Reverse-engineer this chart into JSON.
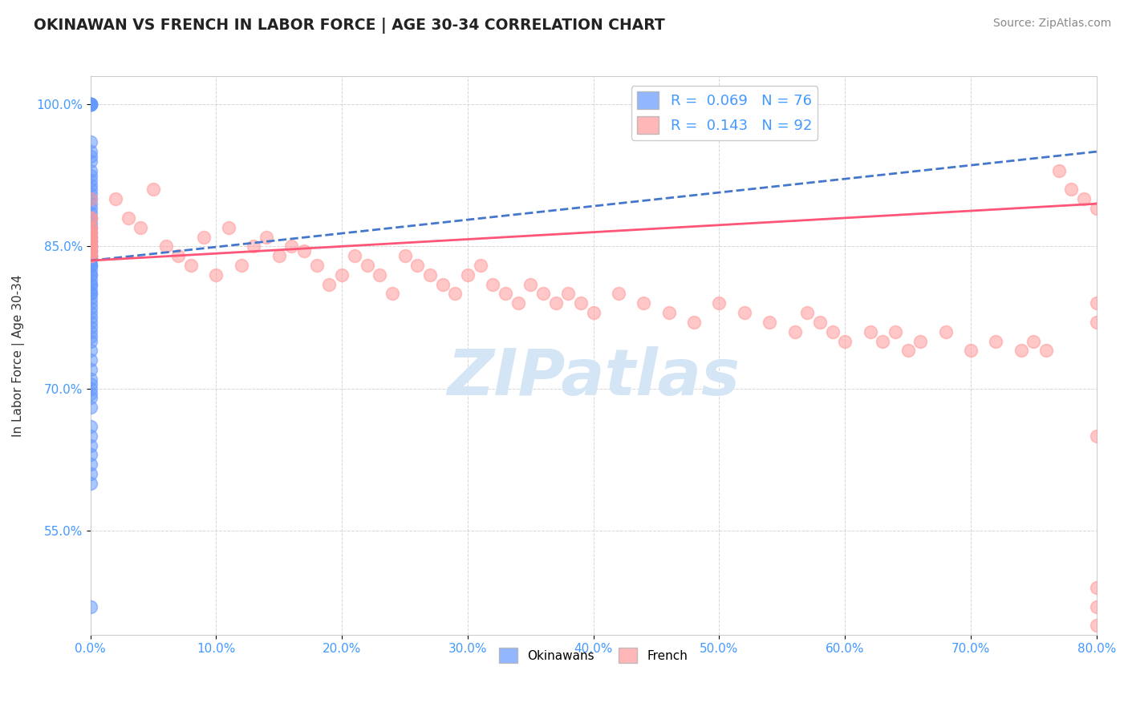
{
  "title": "OKINAWAN VS FRENCH IN LABOR FORCE | AGE 30-34 CORRELATION CHART",
  "source_text": "Source: ZipAtlas.com",
  "ylabel": "In Labor Force | Age 30-34",
  "xlim": [
    0.0,
    80.0
  ],
  "ylim": [
    44.0,
    103.0
  ],
  "xticks": [
    0.0,
    10.0,
    20.0,
    30.0,
    40.0,
    50.0,
    60.0,
    70.0,
    80.0
  ],
  "yticks": [
    55.0,
    70.0,
    85.0,
    100.0
  ],
  "okinawan_R": 0.069,
  "okinawan_N": 76,
  "french_R": 0.143,
  "french_N": 92,
  "okinawan_color": "#6699ff",
  "french_color": "#ff9999",
  "okinawan_line_color": "#4477cc",
  "french_line_color": "#ff5577",
  "background_color": "#ffffff",
  "grid_color": "#cccccc",
  "title_color": "#222222",
  "axis_label_color": "#333333",
  "tick_label_color": "#4499ff",
  "watermark_color": "#d4e5f5",
  "okinawan_legend_label": "Okinawans",
  "french_legend_label": "French",
  "okinawan_trendline": [
    [
      0.0,
      80.0
    ],
    [
      83.5,
      95.0
    ]
  ],
  "french_trendline": [
    [
      0.0,
      80.0
    ],
    [
      83.5,
      89.5
    ]
  ],
  "okinawan_x": [
    0.0,
    0.0,
    0.0,
    0.0,
    0.0,
    0.0,
    0.0,
    0.0,
    0.0,
    0.0,
    0.0,
    0.0,
    0.0,
    0.0,
    0.0,
    0.0,
    0.0,
    0.0,
    0.0,
    0.0,
    0.0,
    0.0,
    0.0,
    0.0,
    0.0,
    0.0,
    0.0,
    0.0,
    0.0,
    0.0,
    0.0,
    0.0,
    0.0,
    0.0,
    0.0,
    0.0,
    0.0,
    0.0,
    0.0,
    0.0,
    0.0,
    0.0,
    0.0,
    0.0,
    0.0,
    0.0,
    0.0,
    0.0,
    0.0,
    0.0,
    0.0,
    0.0,
    0.0,
    0.0,
    0.0,
    0.0,
    0.0,
    0.0,
    0.0,
    0.0,
    0.0,
    0.0,
    0.0,
    0.0,
    0.0,
    0.0,
    0.0,
    0.0,
    0.0,
    0.0,
    0.0,
    0.0,
    0.0,
    0.0,
    0.0,
    0.0
  ],
  "okinawan_y": [
    100.0,
    100.0,
    100.0,
    100.0,
    100.0,
    100.0,
    100.0,
    100.0,
    96.0,
    95.0,
    94.5,
    94.0,
    93.0,
    92.5,
    92.0,
    91.5,
    91.0,
    90.5,
    90.0,
    89.5,
    89.0,
    88.5,
    88.0,
    87.5,
    87.0,
    86.5,
    86.0,
    85.5,
    85.5,
    85.0,
    85.0,
    85.0,
    84.5,
    84.5,
    84.0,
    84.0,
    83.5,
    83.0,
    83.0,
    83.0,
    82.5,
    82.0,
    82.0,
    81.5,
    81.0,
    81.0,
    80.5,
    80.0,
    80.0,
    79.5,
    79.0,
    78.5,
    78.0,
    77.5,
    77.0,
    76.5,
    76.0,
    75.5,
    75.0,
    74.0,
    73.0,
    72.0,
    71.0,
    70.5,
    70.0,
    69.5,
    69.0,
    68.0,
    66.0,
    65.0,
    64.0,
    63.0,
    62.0,
    61.0,
    60.0,
    47.0
  ],
  "french_x": [
    0.0,
    0.0,
    0.0,
    0.0,
    0.0,
    0.0,
    0.0,
    0.0,
    0.0,
    0.0,
    0.0,
    0.0,
    0.0,
    0.0,
    0.0,
    0.0,
    0.0,
    0.0,
    0.0,
    0.0,
    2.0,
    3.0,
    4.0,
    5.0,
    6.0,
    7.0,
    8.0,
    9.0,
    10.0,
    11.0,
    12.0,
    13.0,
    14.0,
    15.0,
    16.0,
    17.0,
    18.0,
    19.0,
    20.0,
    21.0,
    22.0,
    23.0,
    24.0,
    25.0,
    26.0,
    27.0,
    28.0,
    29.0,
    30.0,
    31.0,
    32.0,
    33.0,
    34.0,
    35.0,
    36.0,
    37.0,
    38.0,
    39.0,
    40.0,
    42.0,
    44.0,
    46.0,
    48.0,
    50.0,
    52.0,
    54.0,
    56.0,
    57.0,
    58.0,
    59.0,
    60.0,
    62.0,
    63.0,
    64.0,
    65.0,
    66.0,
    68.0,
    70.0,
    72.0,
    74.0,
    75.0,
    76.0,
    77.0,
    78.0,
    79.0,
    80.0,
    80.0,
    80.0,
    80.0,
    80.0,
    80.0,
    80.0
  ],
  "french_y": [
    90.0,
    88.0,
    88.0,
    87.0,
    87.0,
    86.5,
    86.5,
    86.0,
    86.0,
    85.5,
    85.5,
    85.0,
    85.0,
    85.0,
    85.0,
    84.5,
    84.5,
    84.0,
    84.0,
    84.0,
    90.0,
    88.0,
    87.0,
    91.0,
    85.0,
    84.0,
    83.0,
    86.0,
    82.0,
    87.0,
    83.0,
    85.0,
    86.0,
    84.0,
    85.0,
    84.5,
    83.0,
    81.0,
    82.0,
    84.0,
    83.0,
    82.0,
    80.0,
    84.0,
    83.0,
    82.0,
    81.0,
    80.0,
    82.0,
    83.0,
    81.0,
    80.0,
    79.0,
    81.0,
    80.0,
    79.0,
    80.0,
    79.0,
    78.0,
    80.0,
    79.0,
    78.0,
    77.0,
    79.0,
    78.0,
    77.0,
    76.0,
    78.0,
    77.0,
    76.0,
    75.0,
    76.0,
    75.0,
    76.0,
    74.0,
    75.0,
    76.0,
    74.0,
    75.0,
    74.0,
    75.0,
    74.0,
    93.0,
    91.0,
    90.0,
    89.0,
    79.0,
    77.0,
    49.0,
    65.0,
    47.0,
    45.0
  ]
}
